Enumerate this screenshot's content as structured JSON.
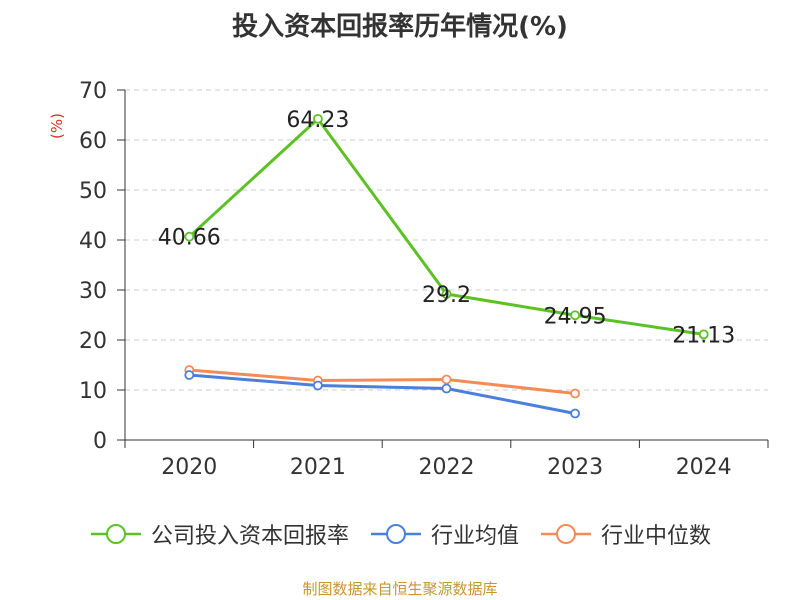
{
  "chart_data": {
    "type": "line",
    "title": "投入资本回报率历年情况(%)",
    "ylabel": "(%)",
    "xlabel": "",
    "categories": [
      "2020",
      "2021",
      "2022",
      "2023",
      "2024"
    ],
    "ylim": [
      0,
      70
    ],
    "yticks": [
      0,
      10,
      20,
      30,
      40,
      50,
      60,
      70
    ],
    "grid": true,
    "legend_position": "bottom",
    "series": [
      {
        "name": "公司投入资本回报率",
        "color": "#5cc124",
        "values": [
          40.66,
          64.23,
          29.2,
          24.95,
          21.13
        ],
        "labels": [
          "40.66",
          "64.23",
          "29.2",
          "24.95",
          "21.13"
        ]
      },
      {
        "name": "行业均值",
        "color": "#4a7fdc",
        "values": [
          13.0,
          10.9,
          10.3,
          5.3,
          null
        ],
        "labels": []
      },
      {
        "name": "行业中位数",
        "color": "#f48b57",
        "values": [
          14.0,
          11.9,
          12.1,
          9.3,
          null
        ],
        "labels": []
      }
    ]
  },
  "source_note": "制图数据来自恒生聚源数据库"
}
